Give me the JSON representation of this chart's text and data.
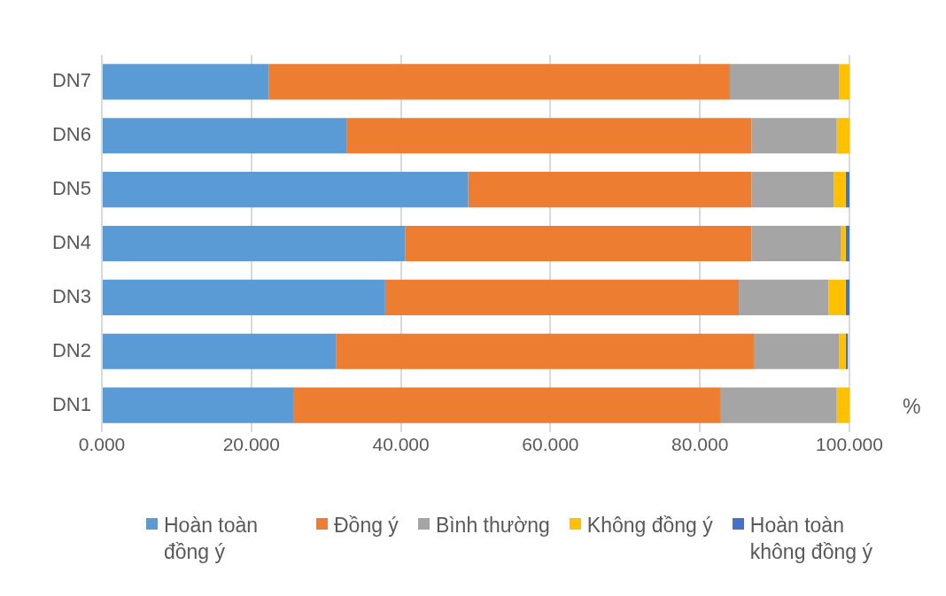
{
  "chart_data": {
    "type": "bar",
    "orientation": "horizontal",
    "stacked": true,
    "categories": [
      "DN7",
      "DN6",
      "DN5",
      "DN4",
      "DN3",
      "DN2",
      "DN1"
    ],
    "series": [
      {
        "name": "Hoàn toàn đồng ý",
        "color": "#5b9bd5",
        "values": [
          22.3,
          32.8,
          49.0,
          40.6,
          37.9,
          31.3,
          25.7
        ]
      },
      {
        "name": "Đồng ý",
        "color": "#ed7d31",
        "values": [
          61.7,
          54.1,
          37.9,
          46.3,
          47.3,
          55.9,
          57.0
        ]
      },
      {
        "name": "Bình thường",
        "color": "#a5a5a5",
        "values": [
          14.6,
          11.4,
          11.0,
          12.0,
          12.0,
          11.4,
          15.6
        ]
      },
      {
        "name": "Không đồng ý",
        "color": "#ffc000",
        "values": [
          1.4,
          1.7,
          1.6,
          0.6,
          2.3,
          0.9,
          1.7
        ]
      },
      {
        "name": "Hoàn toàn không đồng ý",
        "color": "#4472c4",
        "values": [
          0,
          0,
          0.5,
          0.5,
          0.5,
          0.3,
          0
        ]
      }
    ],
    "xlim": [
      0,
      100
    ],
    "xticks": [
      {
        "value": 0,
        "label": "0.000"
      },
      {
        "value": 20,
        "label": "20.000"
      },
      {
        "value": 40,
        "label": "40.000"
      },
      {
        "value": 60,
        "label": "60.000"
      },
      {
        "value": 80,
        "label": "80.000"
      },
      {
        "value": 100,
        "label": "100.000"
      }
    ],
    "xlabel": "%",
    "grid": "x",
    "legend": "bottom"
  }
}
